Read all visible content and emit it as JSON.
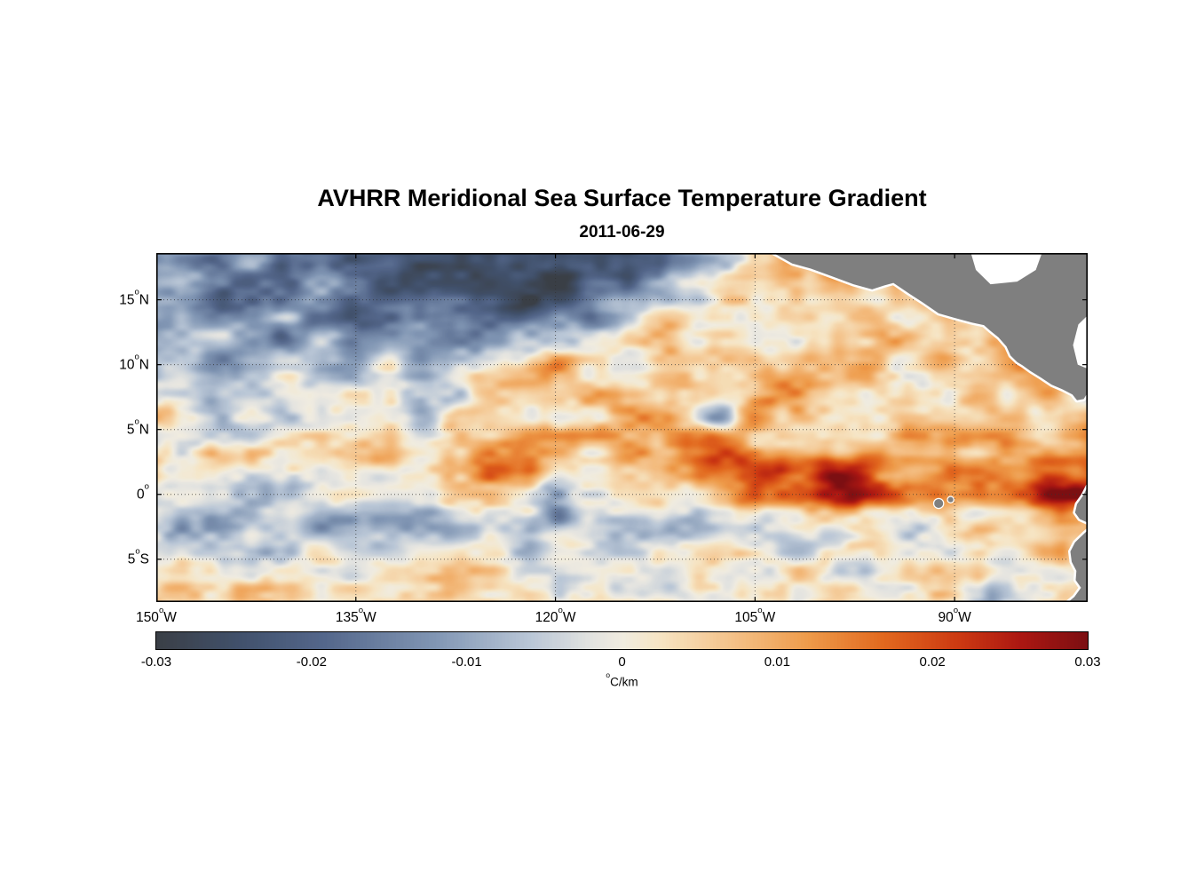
{
  "chart_data": {
    "type": "heatmap",
    "title": "AVHRR Meridional Sea Surface Temperature Gradient",
    "subtitle": "2011-06-29",
    "unit_label": {
      "sup": "o",
      "text": "C/km"
    },
    "x_axis": {
      "min": -150,
      "max": -80,
      "ticks": [
        {
          "value": -150,
          "num": "150",
          "sup": "o",
          "hem": "W"
        },
        {
          "value": -135,
          "num": "135",
          "sup": "o",
          "hem": "W"
        },
        {
          "value": -120,
          "num": "120",
          "sup": "o",
          "hem": "W"
        },
        {
          "value": -105,
          "num": "105",
          "sup": "o",
          "hem": "W"
        },
        {
          "value": -90,
          "num": "90",
          "sup": "o",
          "hem": "W"
        }
      ]
    },
    "y_axis": {
      "min": -8.3,
      "max": 18.6,
      "ticks": [
        {
          "value": 15,
          "num": "15",
          "sup": "o",
          "hem": "N"
        },
        {
          "value": 10,
          "num": "10",
          "sup": "o",
          "hem": "N"
        },
        {
          "value": 5,
          "num": "5",
          "sup": "o",
          "hem": "N"
        },
        {
          "value": 0,
          "num": "0",
          "sup": "o",
          "hem": ""
        },
        {
          "value": -5,
          "num": "5",
          "sup": "o",
          "hem": "S"
        }
      ]
    },
    "colorbar": {
      "min": -0.03,
      "max": 0.03,
      "tick_values": [
        -0.03,
        -0.02,
        -0.01,
        0,
        0.01,
        0.02,
        0.03
      ],
      "tick_labels": [
        "-0.03",
        "-0.02",
        "-0.01",
        "0",
        "0.01",
        "0.02",
        "0.03"
      ],
      "stops": [
        {
          "t": 0.0,
          "c": "#3a3f46"
        },
        {
          "t": 0.09,
          "c": "#41516c"
        },
        {
          "t": 0.18,
          "c": "#54678b"
        },
        {
          "t": 0.3,
          "c": "#8196b4"
        },
        {
          "t": 0.4,
          "c": "#b9c6d6"
        },
        {
          "t": 0.47,
          "c": "#e4e4e0"
        },
        {
          "t": 0.5,
          "c": "#f0ece0"
        },
        {
          "t": 0.54,
          "c": "#f6e5c4"
        },
        {
          "t": 0.62,
          "c": "#f4c188"
        },
        {
          "t": 0.7,
          "c": "#ee9b4a"
        },
        {
          "t": 0.78,
          "c": "#e2691f"
        },
        {
          "t": 0.86,
          "c": "#cd3a12"
        },
        {
          "t": 0.93,
          "c": "#ab1712"
        },
        {
          "t": 1.0,
          "c": "#7c0f12"
        }
      ]
    },
    "field": {
      "comment_units": "milli degC per km, multiply by scale",
      "scale": 0.001,
      "lon_start": -150,
      "lon_step": 2.5,
      "lat_start": 18,
      "lat_step": -2,
      "values": [
        [
          -8,
          -10,
          -14,
          -12,
          -15,
          -18,
          -20,
          -22,
          -26,
          -27,
          -28,
          -27,
          -26,
          -27,
          -25,
          -20,
          -12,
          -4,
          6,
          14,
          10,
          6,
          4,
          3,
          3,
          3,
          3,
          3,
          3
        ],
        [
          -10,
          -14,
          -18,
          -12,
          -16,
          -14,
          -18,
          -24,
          -26,
          -24,
          -27,
          -25,
          -26,
          -24,
          -18,
          -10,
          -4,
          2,
          6,
          10,
          8,
          6,
          5,
          4,
          4,
          3,
          3,
          3,
          3
        ],
        [
          -6,
          -10,
          -16,
          -18,
          -10,
          -14,
          -20,
          -16,
          -18,
          -22,
          -20,
          -24,
          -18,
          -12,
          -6,
          0,
          4,
          3,
          5,
          8,
          6,
          8,
          6,
          5,
          6,
          5,
          4,
          4,
          4
        ],
        [
          -12,
          -8,
          -6,
          -12,
          -14,
          -8,
          -12,
          -16,
          -10,
          -12,
          -14,
          -8,
          -6,
          -2,
          2,
          5,
          3,
          6,
          5,
          3,
          6,
          5,
          8,
          6,
          8,
          10,
          6,
          5,
          5
        ],
        [
          -5,
          -7,
          -9,
          -5,
          -4,
          -8,
          -5,
          -4,
          -6,
          -3,
          -2,
          2,
          12,
          3,
          5,
          3,
          7,
          5,
          8,
          4,
          5,
          7,
          4,
          5,
          6,
          8,
          10,
          6,
          4
        ],
        [
          -3,
          -4,
          -2,
          -5,
          -3,
          -2,
          -4,
          -2,
          -3,
          -2,
          2,
          4,
          5,
          7,
          4,
          6,
          10,
          6,
          5,
          12,
          6,
          4,
          7,
          5,
          4,
          5,
          7,
          9,
          -4
        ],
        [
          2,
          -2,
          -4,
          -2,
          -3,
          -4,
          -2,
          -2,
          -2,
          2,
          4,
          5,
          4,
          6,
          8,
          12,
          6,
          -8,
          16,
          6,
          4,
          7,
          5,
          4,
          5,
          6,
          5,
          4,
          6
        ],
        [
          3,
          2,
          2,
          3,
          2,
          3,
          4,
          3,
          5,
          7,
          9,
          11,
          8,
          6,
          9,
          7,
          11,
          16,
          10,
          11,
          8,
          6,
          5,
          7,
          9,
          11,
          7,
          6,
          8
        ],
        [
          2,
          3,
          4,
          3,
          4,
          5,
          4,
          6,
          8,
          12,
          14,
          10,
          8,
          6,
          7,
          9,
          13,
          19,
          23,
          21,
          25,
          22,
          12,
          9,
          14,
          11,
          9,
          13,
          17
        ],
        [
          -3,
          -2,
          -2,
          -4,
          -5,
          -2,
          -3,
          -2,
          3,
          5,
          7,
          5,
          -9,
          3,
          5,
          7,
          5,
          9,
          16,
          15,
          20,
          24,
          18,
          12,
          10,
          14,
          18,
          28,
          26
        ],
        [
          -7,
          -9,
          -11,
          -7,
          -9,
          -13,
          -11,
          -9,
          -8,
          -6,
          -4,
          -6,
          -12,
          -4,
          -6,
          -8,
          -9,
          -5,
          -3,
          2,
          4,
          5,
          3,
          -5,
          2,
          5,
          8,
          16,
          12
        ],
        [
          -3,
          -4,
          -2,
          -5,
          -4,
          -2,
          -4,
          -3,
          -2,
          -4,
          -2,
          -3,
          -4,
          -2,
          -3,
          -2,
          -4,
          -2,
          -3,
          -5,
          -2,
          2,
          3,
          2,
          -3,
          3,
          5,
          7,
          5
        ],
        [
          2,
          3,
          2,
          3,
          3,
          2,
          3,
          2,
          3,
          3,
          2,
          3,
          3,
          2,
          3,
          3,
          2,
          3,
          3,
          2,
          3,
          -3,
          2,
          3,
          3,
          2,
          5,
          4,
          3
        ],
        [
          3,
          2,
          3,
          3,
          2,
          3,
          3,
          3,
          2,
          3,
          3,
          2,
          3,
          3,
          2,
          3,
          2,
          3,
          3,
          2,
          3,
          3,
          2,
          3,
          3,
          -3,
          2,
          3,
          2
        ]
      ]
    },
    "texture_noise": {
      "seed": 7,
      "amp1": 6.5,
      "amp2": 3.2,
      "sx1": 2.6,
      "sy1": 1.5,
      "sx2": 1.05,
      "sy2": 0.65
    },
    "land": {
      "fill": "#7f7f7f",
      "coast_halo": "#ffffff",
      "polygons": [
        [
          [
            -103.6,
            18.6
          ],
          [
            -102.2,
            17.8
          ],
          [
            -100.8,
            17.4
          ],
          [
            -99.2,
            16.8
          ],
          [
            -97.6,
            16.2
          ],
          [
            -96.2,
            15.8
          ],
          [
            -95.3,
            16.1
          ],
          [
            -94.6,
            16.3
          ],
          [
            -93.6,
            15.6
          ],
          [
            -92.4,
            14.8
          ],
          [
            -91.2,
            13.95
          ],
          [
            -90,
            13.6
          ],
          [
            -88.7,
            13.25
          ],
          [
            -87.8,
            13.05
          ],
          [
            -87.3,
            12.6
          ],
          [
            -86.7,
            12.1
          ],
          [
            -86.1,
            11.4
          ],
          [
            -85.8,
            10.7
          ],
          [
            -85.3,
            10.2
          ],
          [
            -84.9,
            9.95
          ],
          [
            -84.3,
            9.5
          ],
          [
            -83.5,
            9.0
          ],
          [
            -82.7,
            8.45
          ],
          [
            -81.9,
            8.1
          ],
          [
            -81.15,
            7.7
          ],
          [
            -80.8,
            7.25
          ],
          [
            -80.3,
            7.35
          ],
          [
            -79.9,
            8.0
          ],
          [
            -79.5,
            8.6
          ],
          [
            -79.5,
            19.2
          ],
          [
            -103.6,
            19.2
          ]
        ],
        [
          [
            -79.5,
            1.4
          ],
          [
            -80.0,
            0.6
          ],
          [
            -80.35,
            -0.1
          ],
          [
            -80.8,
            -0.75
          ],
          [
            -80.95,
            -1.4
          ],
          [
            -80.6,
            -1.9
          ],
          [
            -80.05,
            -2.15
          ],
          [
            -79.7,
            -2.5
          ],
          [
            -80.25,
            -3.0
          ],
          [
            -80.95,
            -3.7
          ],
          [
            -81.3,
            -4.4
          ],
          [
            -81.2,
            -5.2
          ],
          [
            -80.85,
            -5.9
          ],
          [
            -80.9,
            -6.6
          ],
          [
            -80.5,
            -7.2
          ],
          [
            -81.0,
            -7.9
          ],
          [
            -81.7,
            -8.5
          ],
          [
            -79.0,
            -8.5
          ],
          [
            -79.0,
            1.4
          ]
        ]
      ],
      "holes": [
        [
          [
            -88.8,
            18.7
          ],
          [
            -83.4,
            18.7
          ],
          [
            -83.9,
            17.3
          ],
          [
            -85.3,
            16.4
          ],
          [
            -87.3,
            16.2
          ],
          [
            -88.4,
            17.3
          ]
        ],
        [
          [
            -79.8,
            14.0
          ],
          [
            -79.8,
            9.6
          ],
          [
            -80.75,
            10.0
          ],
          [
            -81.1,
            11.5
          ],
          [
            -80.7,
            13.1
          ]
        ]
      ],
      "islands": [
        {
          "lon": -91.2,
          "lat": -0.7,
          "r": 5
        },
        {
          "lon": -90.3,
          "lat": -0.4,
          "r": 3
        }
      ]
    },
    "frame_color": "#000000",
    "grid_color": "#333333"
  }
}
